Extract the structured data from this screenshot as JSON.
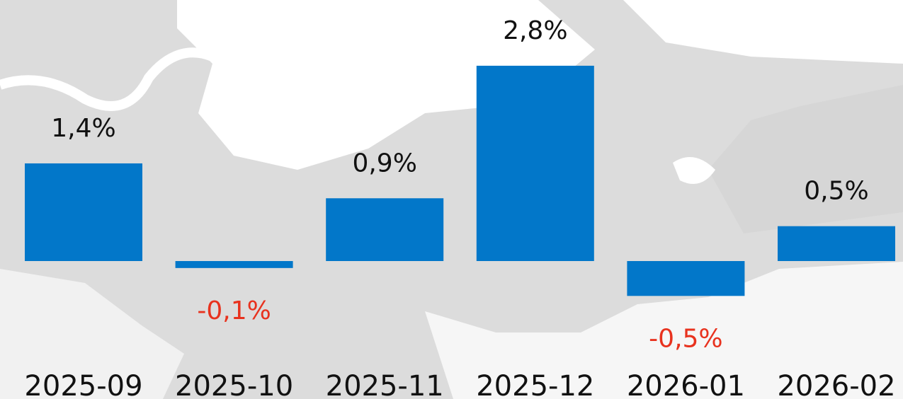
{
  "chart_data": {
    "type": "bar",
    "categories": [
      "2025-09",
      "2025-10",
      "2025-11",
      "2025-12",
      "2026-01",
      "2026-02"
    ],
    "values": [
      1.4,
      -0.1,
      0.9,
      2.8,
      -0.5,
      0.5
    ],
    "value_labels": [
      "1,4%",
      "-0,1%",
      "0,9%",
      "2,8%",
      "-0,5%",
      "0,5%"
    ],
    "color": "#0277c9",
    "positive_label_color": "#111111",
    "negative_label_color": "#e8321e"
  }
}
